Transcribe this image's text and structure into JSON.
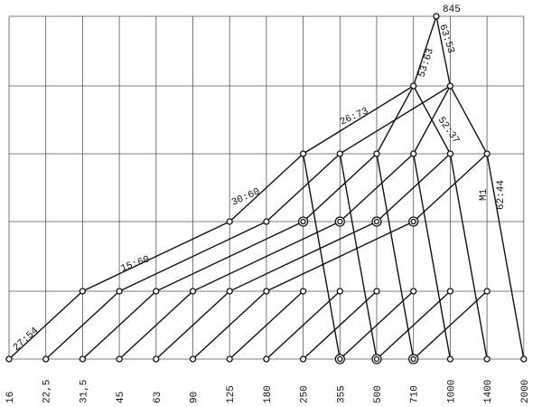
{
  "top_label": "845",
  "speeds": [
    "16",
    "22,5",
    "31,5",
    "45",
    "63",
    "90",
    "125",
    "180",
    "250",
    "355",
    "500",
    "710",
    "1000",
    "1400",
    "2000"
  ],
  "ratios": [
    "27:54",
    "15:60",
    "30:60",
    "26:73",
    "53:63",
    "63:53",
    "52:37",
    "M1",
    "62:44"
  ]
}
